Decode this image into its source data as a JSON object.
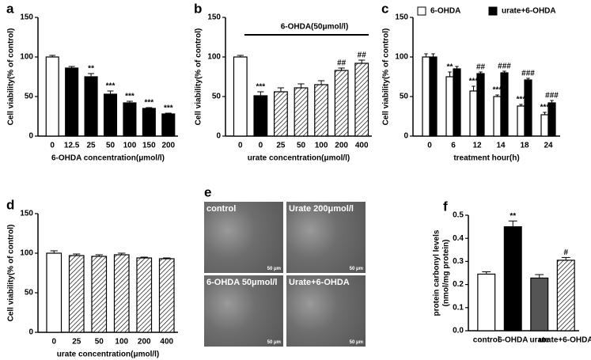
{
  "chart_data": [
    {
      "type": "bar",
      "letter": "a",
      "ylabel": [
        "Cell viability(% of control)"
      ],
      "xlabel": "6-OHDA concentration(μmol/l)",
      "categories": [
        "0",
        "12.5",
        "25",
        "50",
        "100",
        "150",
        "200"
      ],
      "values": [
        100,
        86,
        75,
        53,
        42,
        35,
        28
      ],
      "errors": [
        2,
        2,
        4,
        4,
        2,
        1,
        1
      ],
      "fills": [
        "#ffffff",
        "#000000",
        "#000000",
        "#000000",
        "#000000",
        "#000000",
        "#000000"
      ],
      "annotations": [
        null,
        null,
        "**",
        "***",
        "***",
        "***",
        "***"
      ],
      "ylim": [
        0,
        150
      ],
      "yticks": [
        0,
        50,
        100,
        150
      ]
    },
    {
      "type": "bar",
      "letter": "b",
      "ylabel": [
        "Cell viability(% of control)"
      ],
      "xlabel": "urate concentration(μmol/l)",
      "bracket": "6-OHDA(50μmol/l)",
      "categories": [
        "0",
        "0",
        "25",
        "50",
        "100",
        "200",
        "400"
      ],
      "values": [
        100,
        51,
        56,
        61,
        65,
        83,
        92
      ],
      "errors": [
        2,
        5,
        5,
        5,
        5,
        3,
        4
      ],
      "fills": [
        "#ffffff",
        "#000000",
        "hatch",
        "hatch",
        "hatch",
        "hatch",
        "hatch"
      ],
      "annotations": [
        null,
        "***",
        null,
        null,
        null,
        "##",
        "##"
      ],
      "ylim": [
        0,
        150
      ],
      "yticks": [
        0,
        50,
        100,
        150
      ]
    },
    {
      "type": "bar",
      "letter": "c",
      "ylabel": [
        "Cell viability(% of control)"
      ],
      "xlabel": "treatment hour(h)",
      "categories": [
        "0",
        "6",
        "12",
        "14",
        "18",
        "24"
      ],
      "series": [
        {
          "name": "6-OHDA",
          "color": "#ffffff",
          "values": [
            100,
            75,
            57,
            50,
            38,
            27
          ],
          "errors": [
            4,
            6,
            6,
            2,
            2,
            3
          ],
          "annotations": [
            null,
            "**",
            "***",
            "***",
            "***",
            "***"
          ]
        },
        {
          "name": "urate+6-OHDA",
          "color": "#000000",
          "values": [
            100,
            85,
            79,
            80,
            71,
            42
          ],
          "errors": [
            4,
            3,
            2,
            2,
            2,
            3
          ],
          "annotations": [
            null,
            null,
            "##",
            "###",
            "###",
            "###"
          ]
        }
      ],
      "ylim": [
        0,
        150
      ],
      "yticks": [
        0,
        50,
        100,
        150
      ]
    },
    {
      "type": "bar",
      "letter": "d",
      "ylabel": [
        "Cell viability(% of control)"
      ],
      "xlabel": "urate  concentration(μmol/l)",
      "categories": [
        "0",
        "25",
        "50",
        "100",
        "200",
        "400"
      ],
      "values": [
        100,
        97,
        96,
        98,
        94,
        93
      ],
      "errors": [
        3,
        2,
        2,
        2,
        1,
        1
      ],
      "fills": [
        "#ffffff",
        "hatch",
        "hatch",
        "hatch",
        "hatch",
        "hatch"
      ],
      "annotations": [
        null,
        null,
        null,
        null,
        null,
        null
      ],
      "ylim": [
        0,
        150
      ],
      "yticks": [
        0,
        50,
        100,
        150
      ]
    },
    {
      "type": "bar",
      "letter": "f",
      "ylabel": [
        "protein carbonyl levels",
        "(nmol/mg protein)"
      ],
      "categories": [
        "control",
        "6-OHDA",
        "urate",
        "urate+6-OHDA"
      ],
      "values": [
        0.245,
        0.45,
        0.228,
        0.305
      ],
      "errors": [
        0.01,
        0.025,
        0.015,
        0.012
      ],
      "fills": [
        "#ffffff",
        "#000000",
        "#555555",
        "hatch"
      ],
      "annotations": [
        null,
        "**",
        null,
        "#"
      ],
      "ylim": [
        0,
        0.5
      ],
      "yticks": [
        {
          "value": 0,
          "label": "0.0"
        },
        0.1,
        0.2,
        0.3,
        0.4,
        0.5
      ]
    }
  ],
  "panel_e": {
    "letter": "e",
    "tiles": [
      {
        "label": "control",
        "scale": "50 μm"
      },
      {
        "label": "Urate 200μmol/l",
        "scale": "50 μm"
      },
      {
        "label": "6-OHDA 50μmol/l",
        "scale": "50 μm"
      },
      {
        "label": "Urate+6-OHDA",
        "scale": "50 μm"
      }
    ]
  }
}
